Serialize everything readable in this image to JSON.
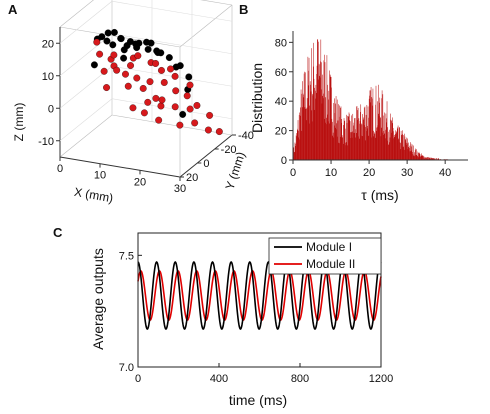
{
  "panels": {
    "a": "A",
    "b": "B",
    "c": "C"
  },
  "chart_data": [
    {
      "type": "scatter",
      "panel": "A",
      "xlabel": "X (mm)",
      "ylabel": "Y (mm)",
      "zlabel": "Z (mm)",
      "xticks": [
        "0",
        "10",
        "20",
        "30"
      ],
      "yticks": [
        "20",
        "0",
        "-20",
        "-40"
      ],
      "zticks": [
        "20",
        "10",
        "0",
        "-10"
      ],
      "xlim": [
        0,
        30
      ],
      "ylim": [
        -40,
        20
      ],
      "zlim": [
        -15,
        25
      ],
      "grid": true,
      "series": [
        {
          "color": "#000000",
          "points": [
            [
              5,
              0,
              18
            ],
            [
              7,
              4,
              20
            ],
            [
              9,
              6,
              22
            ],
            [
              11,
              8,
              23
            ],
            [
              13,
              10,
              22
            ],
            [
              15,
              8,
              21
            ],
            [
              17,
              10,
              20
            ],
            [
              19,
              6,
              19
            ],
            [
              21,
              4,
              18
            ],
            [
              23,
              0,
              16
            ],
            [
              8,
              -4,
              16
            ],
            [
              12,
              -2,
              17
            ],
            [
              16,
              -6,
              18
            ],
            [
              20,
              -4,
              16
            ],
            [
              24,
              -8,
              12
            ],
            [
              10,
              12,
              21
            ],
            [
              14,
              14,
              23
            ],
            [
              18,
              12,
              22
            ],
            [
              22,
              10,
              20
            ],
            [
              26,
              6,
              15
            ],
            [
              6,
              8,
              12
            ],
            [
              12,
              2,
              14
            ],
            [
              27,
              -4,
              10
            ],
            [
              25,
              -12,
              4
            ],
            [
              22,
              -20,
              -6
            ],
            [
              18,
              -2,
              19
            ],
            [
              15,
              2,
              19
            ],
            [
              10,
              -8,
              14
            ]
          ]
        },
        {
          "color": "#d7191c",
          "points": [
            [
              4,
              -4,
              16
            ],
            [
              6,
              2,
              14
            ],
            [
              8,
              -2,
              12
            ],
            [
              10,
              4,
              15
            ],
            [
              12,
              -6,
              10
            ],
            [
              14,
              0,
              14
            ],
            [
              16,
              4,
              16
            ],
            [
              18,
              -2,
              13
            ],
            [
              20,
              2,
              14
            ],
            [
              22,
              -6,
              11
            ],
            [
              24,
              -2,
              10
            ],
            [
              26,
              -10,
              6
            ],
            [
              7,
              -10,
              8
            ],
            [
              9,
              -14,
              5
            ],
            [
              11,
              -8,
              3
            ],
            [
              13,
              -16,
              1
            ],
            [
              15,
              -12,
              -2
            ],
            [
              17,
              -18,
              -4
            ],
            [
              19,
              -10,
              0
            ],
            [
              21,
              -16,
              -3
            ],
            [
              23,
              -24,
              -5
            ],
            [
              25,
              -20,
              -8
            ],
            [
              27,
              -28,
              -7
            ],
            [
              28,
              -22,
              -10
            ],
            [
              29,
              -30,
              -12
            ],
            [
              8,
              6,
              10
            ],
            [
              12,
              10,
              12
            ],
            [
              14,
              -4,
              7
            ],
            [
              16,
              -10,
              5
            ],
            [
              18,
              -14,
              8
            ],
            [
              20,
              -8,
              6
            ],
            [
              22,
              -12,
              3
            ],
            [
              24,
              -16,
              1
            ],
            [
              26,
              -18,
              -2
            ],
            [
              10,
              -18,
              -6
            ],
            [
              12,
              -22,
              -8
            ],
            [
              14,
              -26,
              -4
            ],
            [
              6,
              -6,
              2
            ],
            [
              16,
              -20,
              -9
            ],
            [
              20,
              -26,
              -11
            ]
          ]
        }
      ]
    },
    {
      "type": "bar",
      "panel": "B",
      "xlabel": "τ (ms)",
      "ylabel": "Distribution",
      "xticks": [
        "0",
        "10",
        "20",
        "30",
        "40"
      ],
      "yticks": [
        "0",
        "20",
        "40",
        "60",
        "80"
      ],
      "xlim": [
        0,
        46
      ],
      "ylim": [
        0,
        85
      ],
      "bin_width_ms": 0.1,
      "color": "#b50000",
      "envelope": {
        "x": [
          0,
          1,
          2,
          3,
          4,
          5,
          6,
          6.5,
          7,
          8,
          9,
          10,
          11,
          12,
          13,
          14,
          15,
          16,
          17,
          18,
          19,
          20,
          21,
          22,
          23,
          24,
          25,
          26,
          27,
          28,
          29,
          30,
          31,
          32,
          33,
          34,
          35,
          36,
          37,
          38,
          39,
          40,
          41,
          42,
          43,
          44
        ],
        "y": [
          5,
          20,
          40,
          52,
          60,
          66,
          70,
          72,
          70,
          64,
          56,
          48,
          40,
          32,
          28,
          26,
          26,
          28,
          30,
          32,
          36,
          40,
          42,
          42,
          40,
          36,
          30,
          24,
          20,
          18,
          16,
          13,
          10,
          7,
          5,
          3,
          2,
          1.5,
          1,
          1,
          0.5,
          0.5,
          0.3,
          0.2,
          0.1,
          0
        ]
      },
      "peak_value": 82
    },
    {
      "type": "line",
      "panel": "C",
      "xlabel": "time (ms)",
      "ylabel": "Average outputs",
      "xticks": [
        "0",
        "400",
        "800",
        "1200"
      ],
      "yticks": [
        "7.0",
        "7.5"
      ],
      "xlim": [
        0,
        1200
      ],
      "ylim": [
        7.0,
        7.6
      ],
      "legend_position": "top-right",
      "period_ms": 92,
      "series": [
        {
          "name": "Module I",
          "color": "#000000",
          "mean": 7.32,
          "amplitude": 0.15,
          "phase_ms": 0
        },
        {
          "name": "Module II",
          "color": "#e00000",
          "mean": 7.32,
          "amplitude": 0.11,
          "phase_ms": 14
        }
      ]
    }
  ]
}
